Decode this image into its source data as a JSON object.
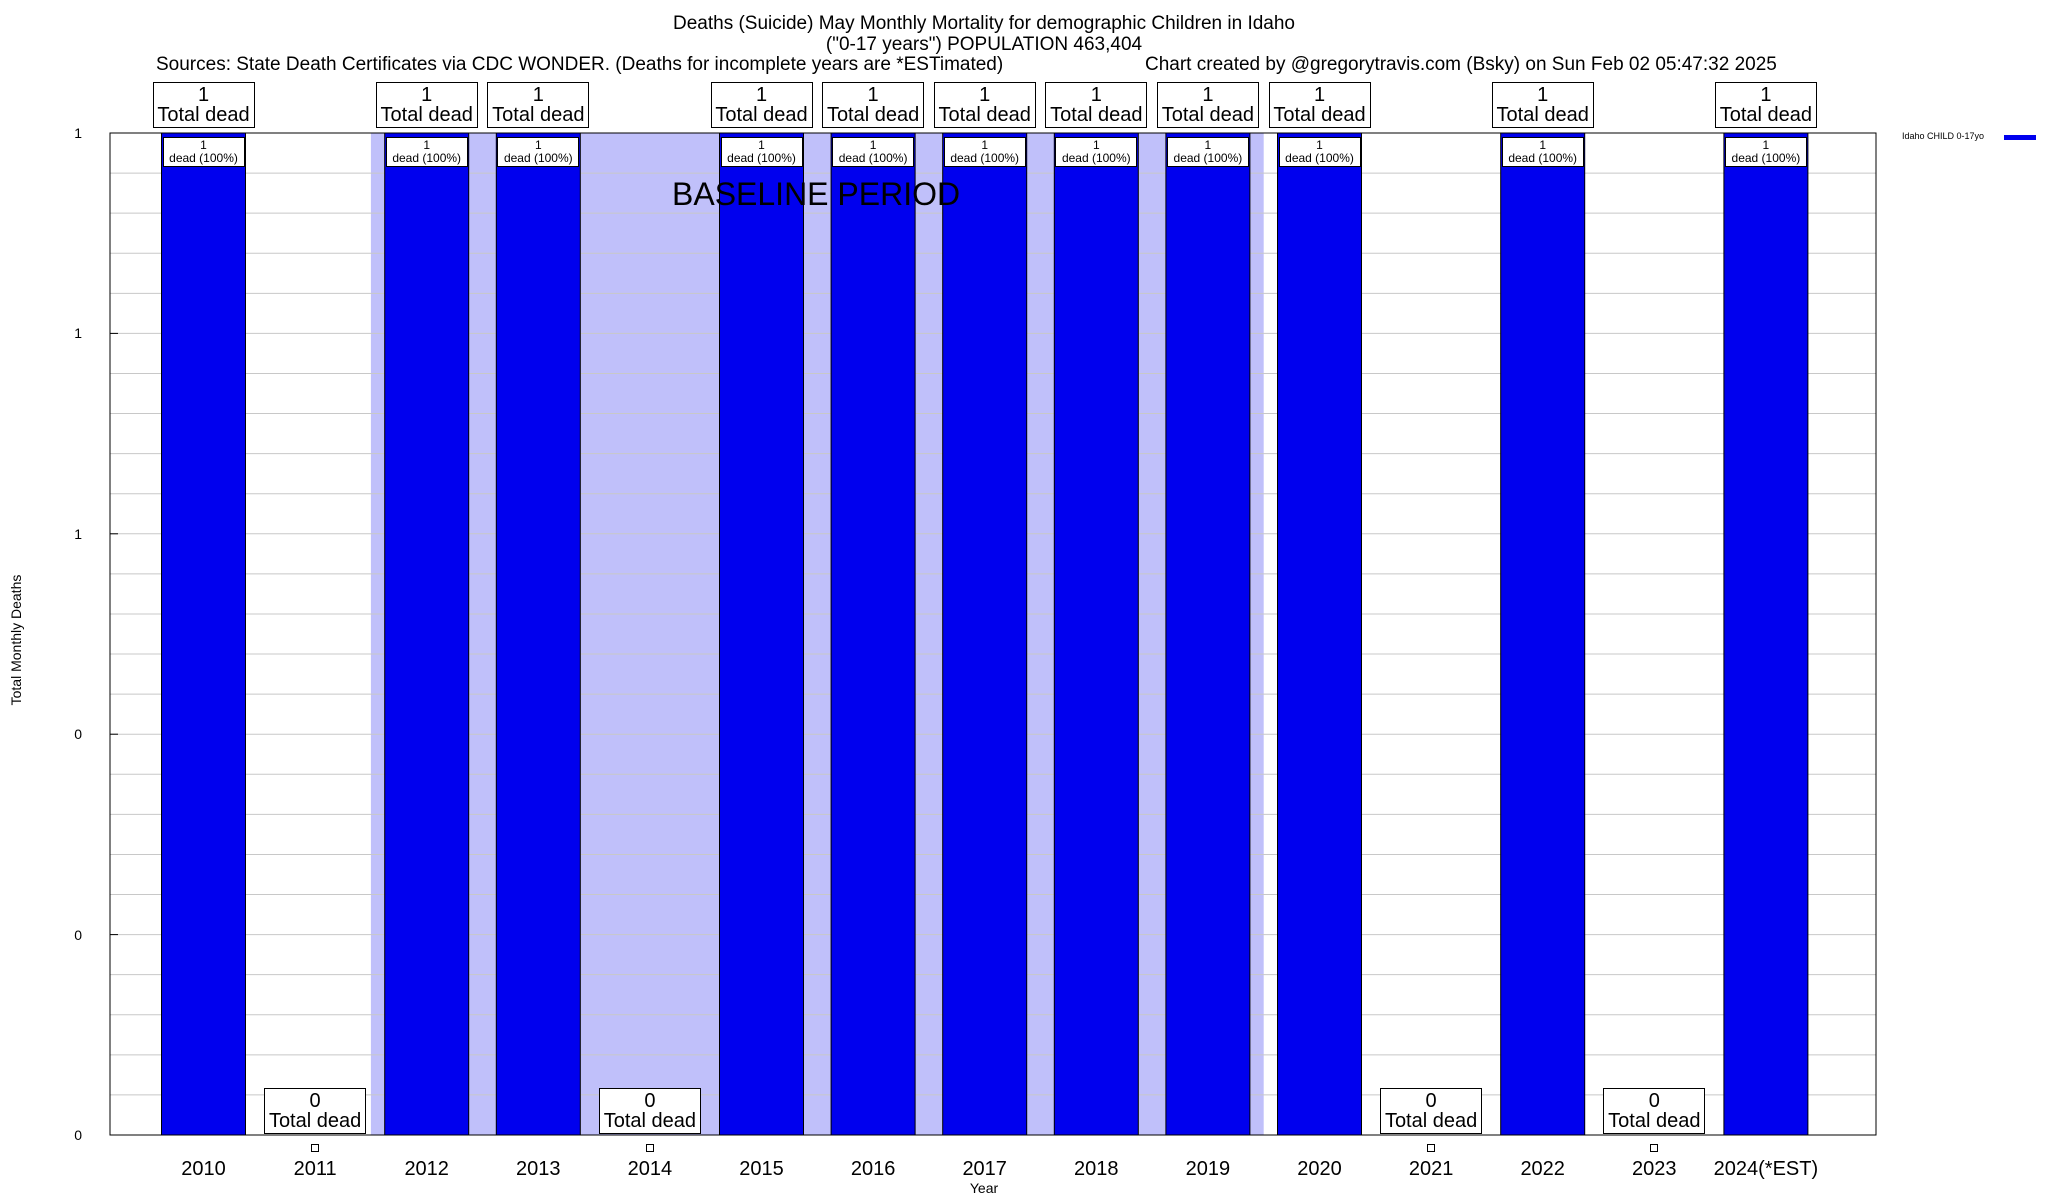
{
  "header": {
    "title_line1": "Deaths (Suicide) May Monthly Mortality for demographic Children in Idaho",
    "title_line2": "(\"0-17 years\") POPULATION 463,404",
    "sources": "Sources: State Death Certificates via CDC WONDER. (Deaths for incomplete years are *ESTimated)",
    "credit": "Chart created by @gregorytravis.com (Bsky) on Sun Feb 02 05:47:32 2025"
  },
  "annotation": "BASELINE PERIOD",
  "legend": {
    "label": "Idaho CHILD 0-17yo",
    "color": "#0000ee"
  },
  "colors": {
    "bar": "#0000ee",
    "baseline_shade": "#c0c0fa",
    "grid": "#c8c8c8"
  },
  "chart_data": {
    "type": "bar",
    "xlabel": "Year",
    "ylabel": "Total Monthly Deaths",
    "ylim": [
      0,
      1
    ],
    "yticks": [
      "0",
      "0",
      "0",
      "1",
      "1",
      "1"
    ],
    "categories": [
      "2010",
      "2011",
      "2012",
      "2013",
      "2014",
      "2015",
      "2016",
      "2017",
      "2018",
      "2019",
      "2020",
      "2021",
      "2022",
      "2023",
      "2024(*EST)"
    ],
    "series": [
      {
        "name": "Idaho CHILD 0-17yo",
        "values": [
          1,
          0,
          1,
          1,
          0,
          1,
          1,
          1,
          1,
          1,
          1,
          0,
          1,
          0,
          1
        ]
      }
    ],
    "total_labels": [
      "1\nTotal dead",
      "0\nTotal dead",
      "1\nTotal dead",
      "1\nTotal dead",
      "0\nTotal dead",
      "1\nTotal dead",
      "1\nTotal dead",
      "1\nTotal dead",
      "1\nTotal dead",
      "1\nTotal dead",
      "1\nTotal dead",
      "0\nTotal dead",
      "1\nTotal dead",
      "0\nTotal dead",
      "1\nTotal dead"
    ],
    "bar_labels": [
      "1\ndead (100%)",
      "",
      "1\ndead (100%)",
      "1\ndead (100%)",
      "",
      "1\ndead (100%)",
      "1\ndead (100%)",
      "1\ndead (100%)",
      "1\ndead (100%)",
      "1\ndead (100%)",
      "1\ndead (100%)",
      "",
      "1\ndead (100%)",
      "",
      "1\ndead (100%)"
    ],
    "baseline_period": [
      "2012",
      "2019"
    ],
    "grid": true,
    "legend_position": "top-right"
  }
}
